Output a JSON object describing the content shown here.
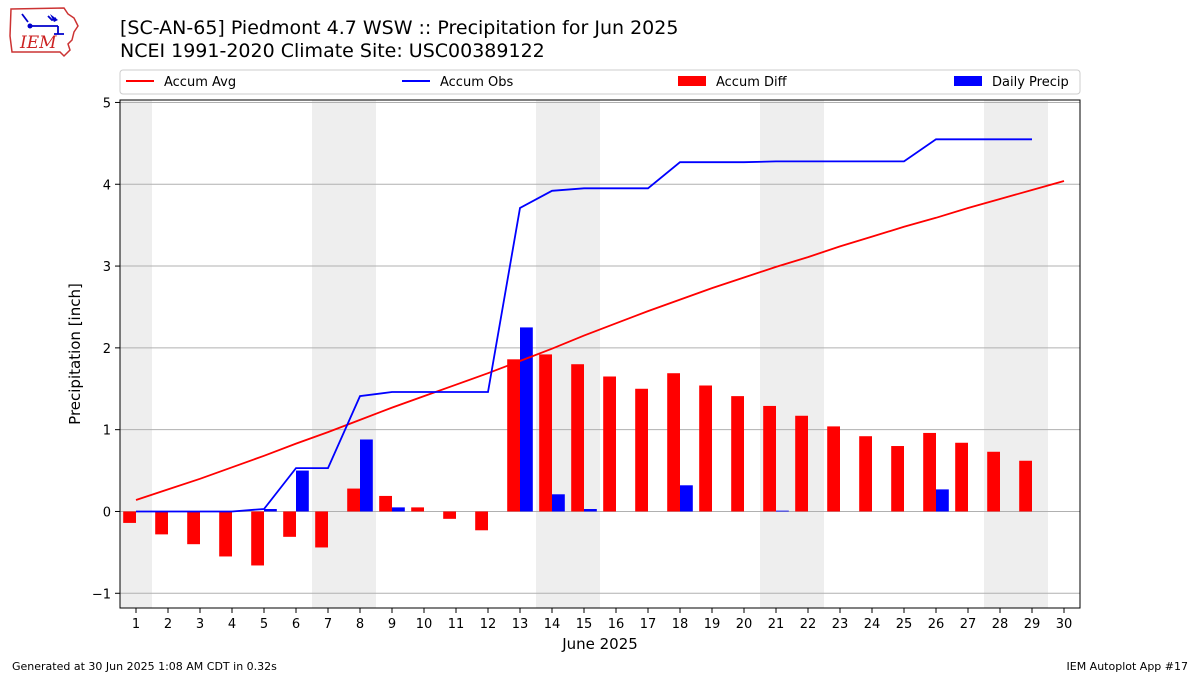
{
  "header": {
    "title_line1": "[SC-AN-65] Piedmont 4.7 WSW :: Precipitation for Jun 2025",
    "title_line2": "NCEI 1991-2020 Climate Site: USC00389122",
    "logo_text": "IEM"
  },
  "footer": {
    "generated": "Generated at 30 Jun 2025 1:08 AM CDT in 0.32s",
    "app": "IEM Autoplot App #17"
  },
  "colors": {
    "accum_avg": "#ff0000",
    "accum_obs": "#0000ff",
    "accum_diff": "#ff0000",
    "daily_precip": "#0000ff",
    "weekend_shade": "#eeeeee",
    "grid": "#b0b0b0"
  },
  "chart_data": {
    "type": "bar",
    "title": "[SC-AN-65] Piedmont 4.7 WSW :: Precipitation for Jun 2025",
    "subtitle": "NCEI 1991-2020 Climate Site: USC00389122",
    "xlabel": "June 2025",
    "ylabel": "Precipitation [inch]",
    "ylim": [
      -1.18,
      5.03
    ],
    "yticks": [
      -1,
      0,
      1,
      2,
      3,
      4,
      5
    ],
    "xlim": [
      0.5,
      30.5
    ],
    "grid": true,
    "legend_position": "top",
    "weekend_shading": [
      [
        0.5,
        1.5
      ],
      [
        6.5,
        8.5
      ],
      [
        13.5,
        15.5
      ],
      [
        20.5,
        22.5
      ],
      [
        27.5,
        29.5
      ]
    ],
    "categories": [
      "1",
      "2",
      "3",
      "4",
      "5",
      "6",
      "7",
      "8",
      "9",
      "10",
      "11",
      "12",
      "13",
      "14",
      "15",
      "16",
      "17",
      "18",
      "19",
      "20",
      "21",
      "22",
      "23",
      "24",
      "25",
      "26",
      "27",
      "28",
      "29",
      "30"
    ],
    "series": [
      {
        "name": "Accum Avg",
        "type": "line",
        "x": [
          1,
          2,
          3,
          4,
          5,
          6,
          7,
          8,
          9,
          10,
          11,
          12,
          13,
          14,
          15,
          16,
          17,
          18,
          19,
          20,
          21,
          22,
          23,
          24,
          25,
          26,
          27,
          28,
          29,
          30
        ],
        "values": [
          0.14,
          0.27,
          0.4,
          0.54,
          0.68,
          0.83,
          0.97,
          1.12,
          1.27,
          1.41,
          1.55,
          1.69,
          1.84,
          1.99,
          2.15,
          2.3,
          2.45,
          2.59,
          2.73,
          2.86,
          2.99,
          3.11,
          3.24,
          3.36,
          3.48,
          3.59,
          3.71,
          3.82,
          3.93,
          4.04
        ]
      },
      {
        "name": "Accum Obs",
        "type": "line",
        "x": [
          1,
          2,
          3,
          4,
          5,
          6,
          7,
          8,
          9,
          10,
          11,
          12,
          13,
          14,
          15,
          16,
          17,
          18,
          19,
          20,
          21,
          22,
          23,
          24,
          25,
          26,
          27,
          28,
          29
        ],
        "values": [
          0,
          0,
          0,
          0,
          0.03,
          0.53,
          0.53,
          1.41,
          1.46,
          1.46,
          1.46,
          1.46,
          3.71,
          3.92,
          3.95,
          3.95,
          3.95,
          4.27,
          4.27,
          4.27,
          4.28,
          4.28,
          4.28,
          4.28,
          4.28,
          4.55,
          4.55,
          4.55,
          4.55
        ]
      },
      {
        "name": "Accum Diff",
        "type": "bar",
        "x": [
          1,
          2,
          3,
          4,
          5,
          6,
          7,
          8,
          9,
          10,
          11,
          12,
          13,
          14,
          15,
          16,
          17,
          18,
          19,
          20,
          21,
          22,
          23,
          24,
          25,
          26,
          27,
          28,
          29
        ],
        "values": [
          -0.14,
          -0.28,
          -0.4,
          -0.55,
          -0.66,
          -0.31,
          -0.44,
          0.28,
          0.19,
          0.05,
          -0.09,
          -0.23,
          1.86,
          1.92,
          1.8,
          1.65,
          1.5,
          1.69,
          1.54,
          1.41,
          1.29,
          1.17,
          1.04,
          0.92,
          0.8,
          0.96,
          0.84,
          0.73,
          0.62
        ]
      },
      {
        "name": "Daily Precip",
        "type": "bar",
        "x": [
          1,
          2,
          3,
          4,
          5,
          6,
          7,
          8,
          9,
          10,
          11,
          12,
          13,
          14,
          15,
          16,
          17,
          18,
          19,
          20,
          21,
          22,
          23,
          24,
          25,
          26,
          27,
          28,
          29
        ],
        "values": [
          0,
          0,
          0,
          0,
          0.03,
          0.5,
          0,
          0.88,
          0.05,
          0,
          0,
          0,
          2.25,
          0.21,
          0.03,
          0,
          0,
          0.32,
          0,
          0,
          0.01,
          0,
          0,
          0,
          0,
          0.27,
          0,
          0,
          0
        ]
      }
    ]
  }
}
